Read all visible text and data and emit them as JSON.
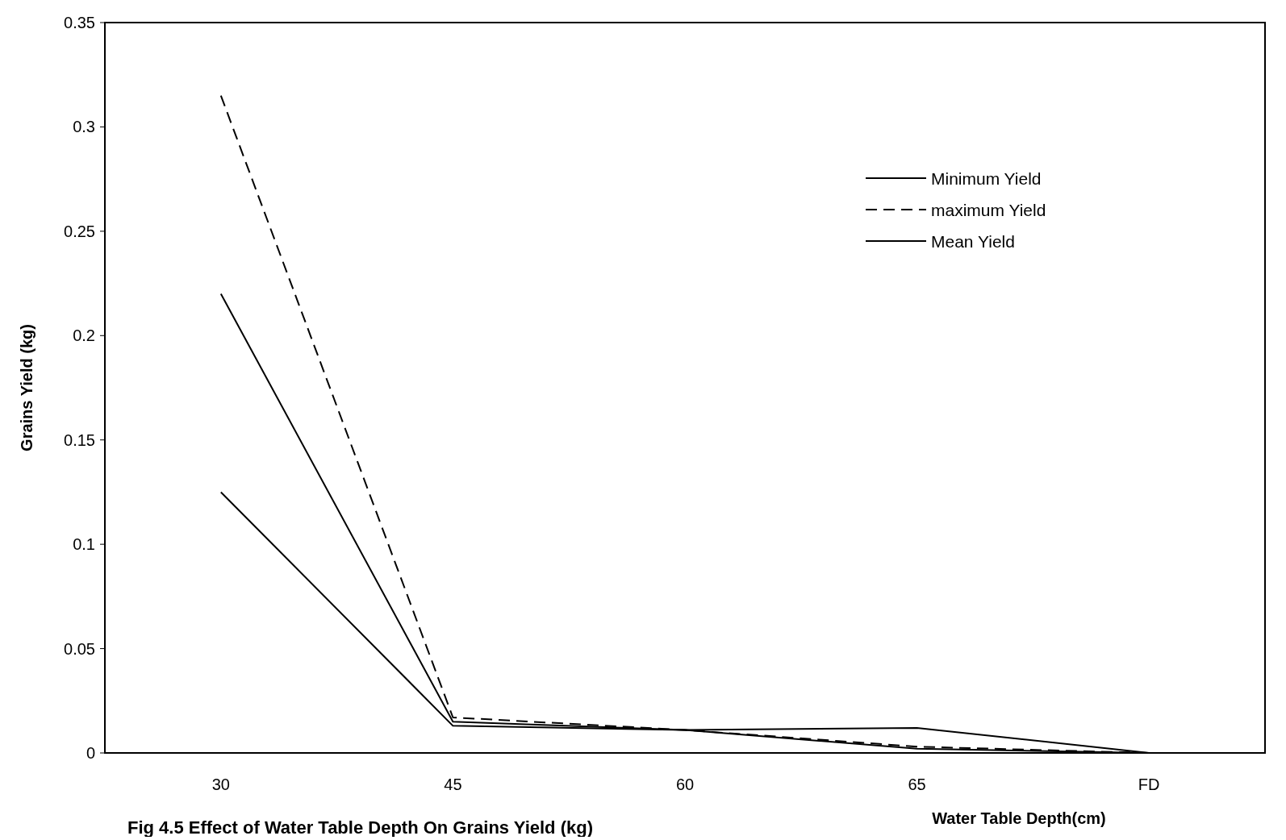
{
  "chart_data": {
    "type": "line",
    "xlabel": "Water Table Depth(cm)",
    "ylabel": "Grains Yield (kg)",
    "annotations": [
      "Fig 4.5 Effect of Water Table Depth On Grains Yield (kg)"
    ],
    "categories": [
      "30",
      "45",
      "60",
      "65",
      "FD"
    ],
    "ylim": [
      0,
      0.35
    ],
    "yticks": [
      0,
      0.05,
      0.1,
      0.15,
      0.2,
      0.25,
      0.3,
      0.35
    ],
    "grid": false,
    "legend": "top right",
    "marker": "none",
    "series": [
      {
        "name": "Minimum Yield",
        "color": "#000000",
        "line_style": "solid",
        "values": [
          0.125,
          0.013,
          0.011,
          0.002,
          0
        ]
      },
      {
        "name": "maximum Yield",
        "color": "#000000",
        "line_style": "dashed",
        "values": [
          0.315,
          0.017,
          0.011,
          0.003,
          0
        ]
      },
      {
        "name": "Mean Yield",
        "color": "#000000",
        "line_style": "solid",
        "values": [
          0.22,
          0.015,
          0.011,
          0.012,
          0
        ]
      }
    ]
  }
}
